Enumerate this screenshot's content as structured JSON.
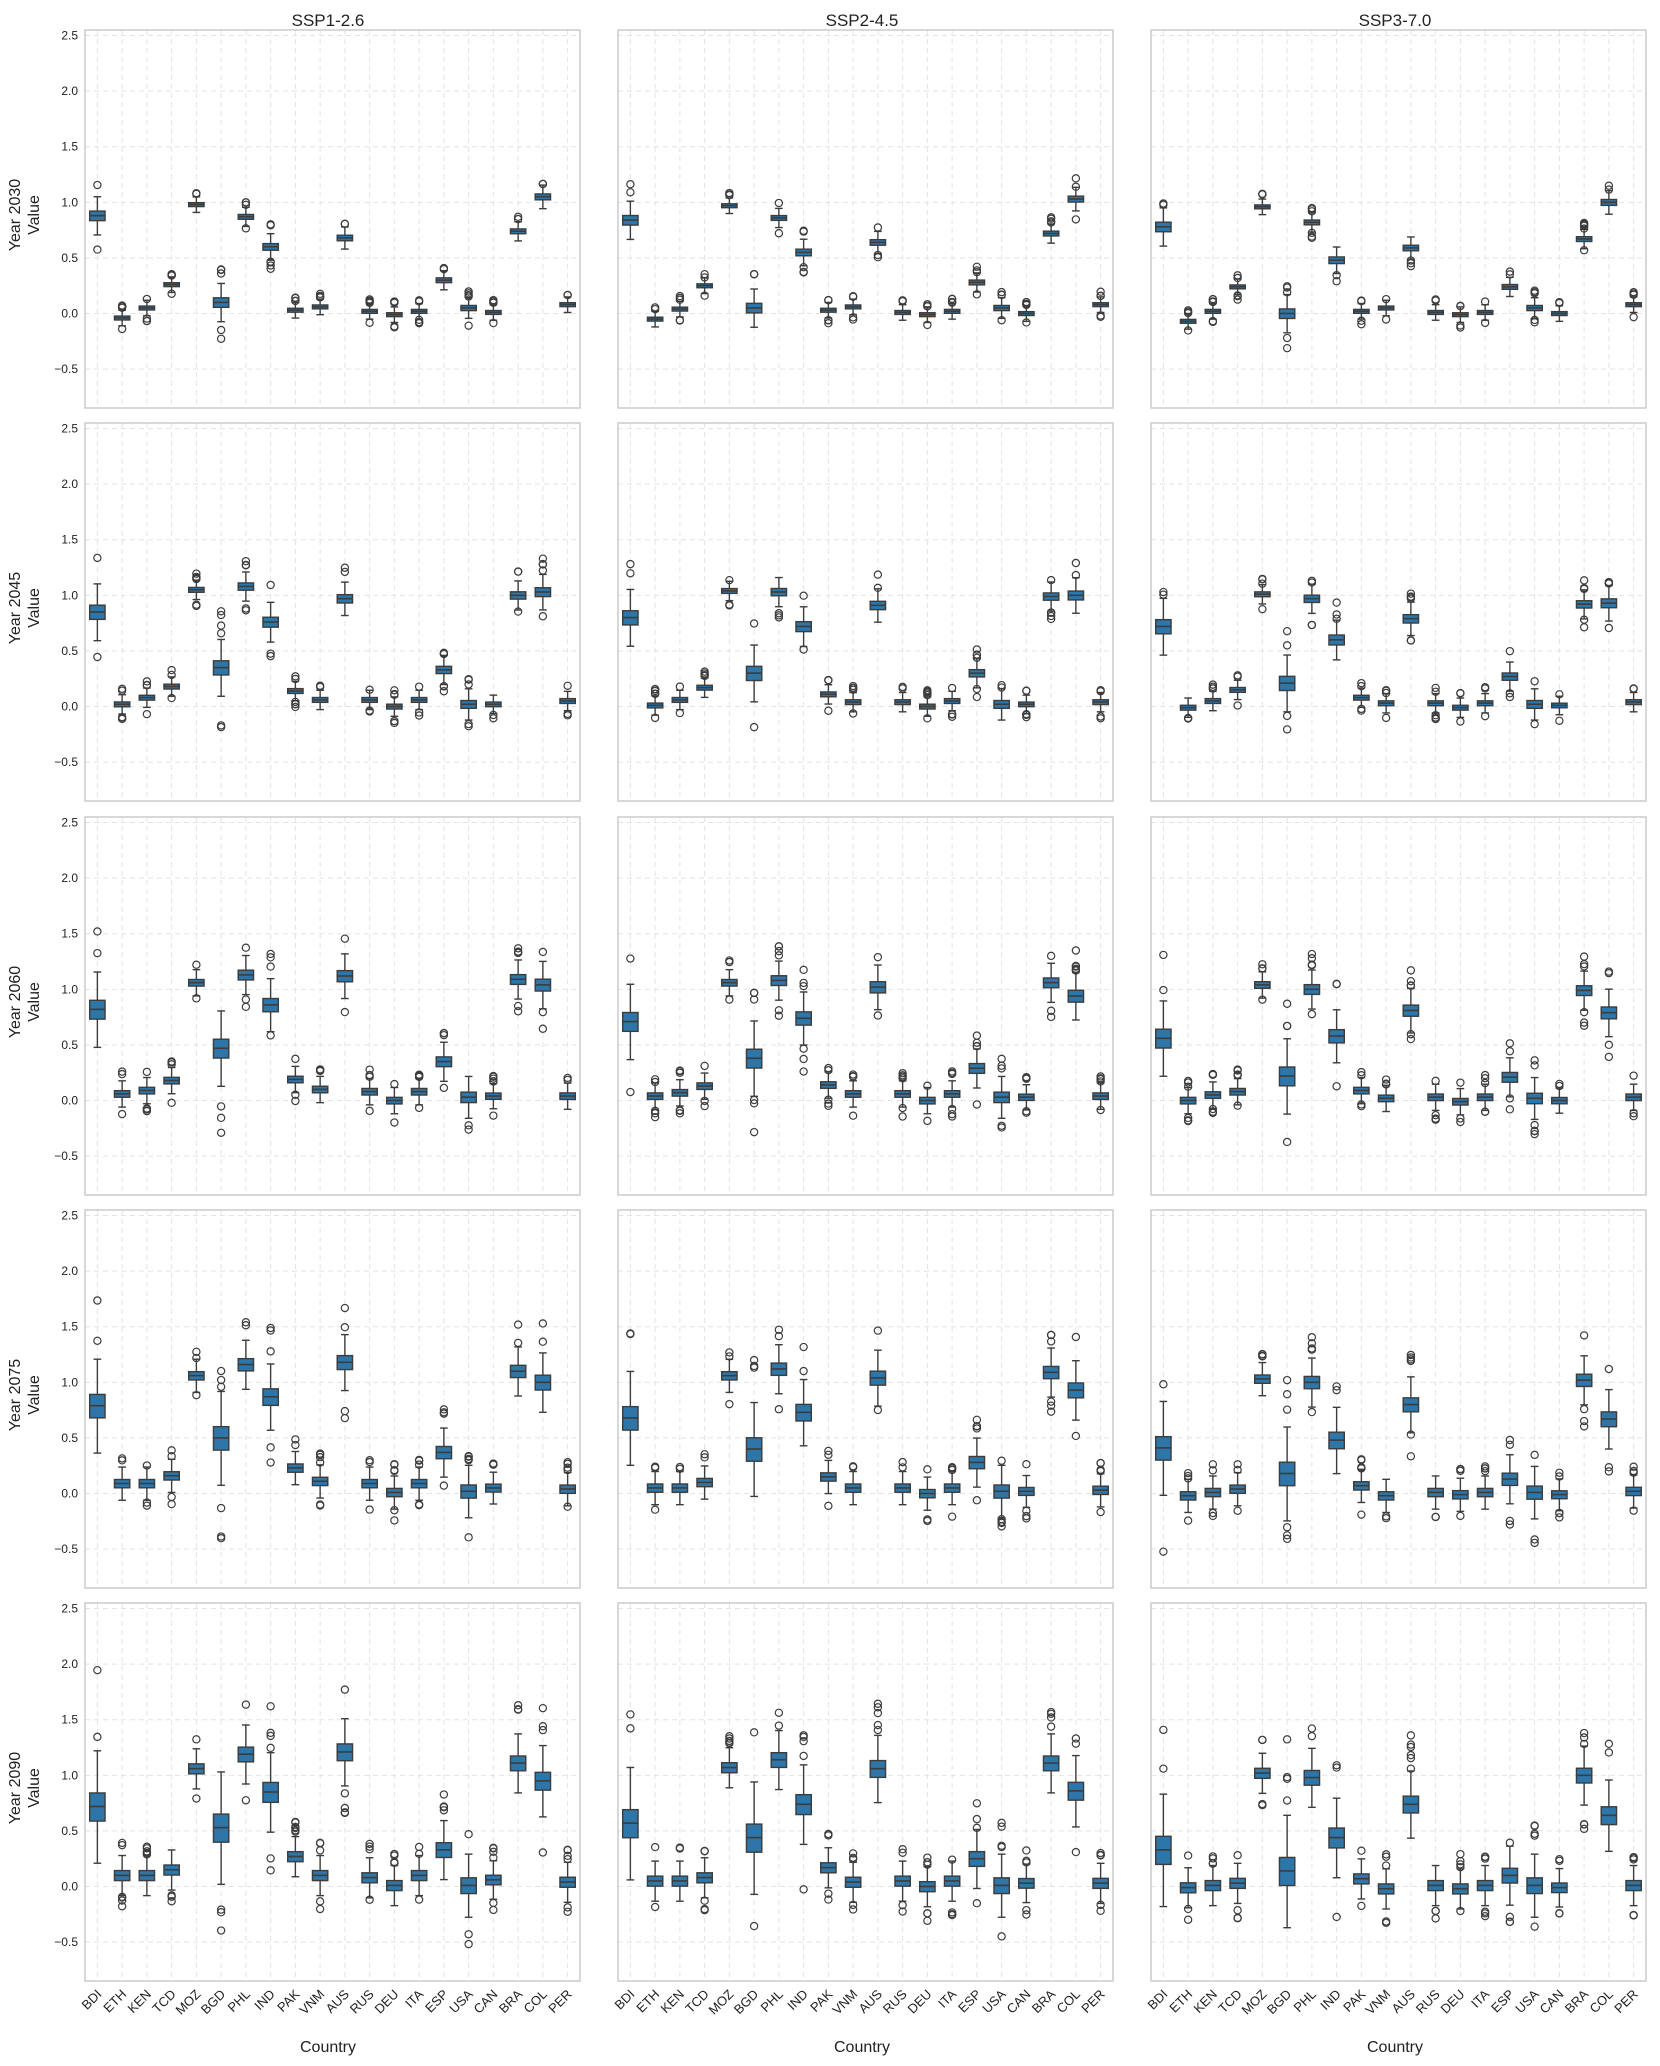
{
  "figure": {
    "column_titles": [
      "SSP1-2.6",
      "SSP2-4.5",
      "SSP3-7.0"
    ],
    "row_labels": [
      "Year 2030",
      "Year 2045",
      "Year 2060",
      "Year 2075",
      "Year 2090"
    ],
    "y_axis_label": "Value",
    "x_axis_label": "Country"
  },
  "colors": {
    "box_fill": "#2e75a8",
    "box_edge": "#3c3c3c",
    "grid": "#e4e4e4",
    "frame": "#c8c8c8"
  },
  "chart_data": {
    "type": "box",
    "grid": true,
    "ylim": [
      -0.85,
      2.55
    ],
    "yticks": [
      -0.5,
      0.0,
      0.5,
      1.0,
      1.5,
      2.0,
      2.5
    ],
    "ytick_labels": [
      "−0.5",
      "0.0",
      "0.5",
      "1.0",
      "1.5",
      "2.0",
      "2.5"
    ],
    "categories": [
      "BDI",
      "ETH",
      "KEN",
      "TCD",
      "MOZ",
      "BGD",
      "PHL",
      "IND",
      "PAK",
      "VNM",
      "AUS",
      "RUS",
      "DEU",
      "ITA",
      "ESP",
      "USA",
      "CAN",
      "BRA",
      "COL",
      "PER"
    ],
    "panels": [
      {
        "row": "Year 2030",
        "scenario": "SSP1-2.6",
        "medians": [
          0.88,
          -0.04,
          0.05,
          0.26,
          0.98,
          0.1,
          0.87,
          0.6,
          0.03,
          0.06,
          0.68,
          0.02,
          -0.01,
          0.02,
          0.3,
          0.05,
          0.01,
          0.74,
          1.05,
          0.08
        ]
      },
      {
        "row": "Year 2030",
        "scenario": "SSP2-4.5",
        "medians": [
          0.84,
          -0.05,
          0.04,
          0.25,
          0.97,
          0.05,
          0.86,
          0.55,
          0.03,
          0.06,
          0.64,
          0.01,
          -0.01,
          0.02,
          0.28,
          0.05,
          0.0,
          0.72,
          1.03,
          0.08
        ]
      },
      {
        "row": "Year 2030",
        "scenario": "SSP3-7.0",
        "medians": [
          0.78,
          -0.07,
          0.02,
          0.24,
          0.96,
          0.0,
          0.82,
          0.48,
          0.02,
          0.05,
          0.59,
          0.01,
          -0.01,
          0.01,
          0.24,
          0.05,
          0.0,
          0.67,
          1.0,
          0.08
        ]
      },
      {
        "row": "Year 2045",
        "scenario": "SSP1-2.6",
        "medians": [
          0.85,
          0.02,
          0.08,
          0.18,
          1.05,
          0.35,
          1.08,
          0.76,
          0.14,
          0.06,
          0.97,
          0.06,
          0.0,
          0.06,
          0.33,
          0.02,
          0.02,
          1.0,
          1.03,
          0.05
        ]
      },
      {
        "row": "Year 2045",
        "scenario": "SSP2-4.5",
        "medians": [
          0.8,
          0.01,
          0.06,
          0.17,
          1.04,
          0.3,
          1.03,
          0.72,
          0.11,
          0.04,
          0.91,
          0.04,
          0.0,
          0.05,
          0.3,
          0.02,
          0.02,
          0.99,
          1.0,
          0.04
        ]
      },
      {
        "row": "Year 2045",
        "scenario": "SSP3-7.0",
        "medians": [
          0.72,
          -0.01,
          0.05,
          0.15,
          1.01,
          0.21,
          0.97,
          0.6,
          0.08,
          0.03,
          0.79,
          0.03,
          -0.01,
          0.03,
          0.27,
          0.02,
          0.01,
          0.92,
          0.93,
          0.04
        ]
      },
      {
        "row": "Year 2060",
        "scenario": "SSP1-2.6",
        "medians": [
          0.82,
          0.06,
          0.09,
          0.18,
          1.06,
          0.47,
          1.13,
          0.86,
          0.19,
          0.1,
          1.12,
          0.08,
          0.0,
          0.08,
          0.35,
          0.03,
          0.04,
          1.09,
          1.04,
          0.04
        ]
      },
      {
        "row": "Year 2060",
        "scenario": "SSP2-4.5",
        "medians": [
          0.71,
          0.04,
          0.07,
          0.13,
          1.06,
          0.38,
          1.08,
          0.74,
          0.14,
          0.06,
          1.02,
          0.06,
          0.0,
          0.06,
          0.29,
          0.03,
          0.03,
          1.06,
          0.94,
          0.04
        ]
      },
      {
        "row": "Year 2060",
        "scenario": "SSP3-7.0",
        "medians": [
          0.56,
          0.0,
          0.05,
          0.08,
          1.04,
          0.22,
          1.0,
          0.58,
          0.09,
          0.02,
          0.81,
          0.03,
          -0.01,
          0.03,
          0.21,
          0.02,
          0.0,
          0.99,
          0.79,
          0.03
        ]
      },
      {
        "row": "Year 2075",
        "scenario": "SSP1-2.6",
        "medians": [
          0.79,
          0.09,
          0.09,
          0.16,
          1.06,
          0.5,
          1.16,
          0.87,
          0.23,
          0.11,
          1.18,
          0.09,
          0.01,
          0.09,
          0.37,
          0.02,
          0.05,
          1.1,
          1.0,
          0.04
        ]
      },
      {
        "row": "Year 2075",
        "scenario": "SSP2-4.5",
        "medians": [
          0.68,
          0.05,
          0.05,
          0.1,
          1.06,
          0.4,
          1.12,
          0.73,
          0.15,
          0.05,
          1.04,
          0.05,
          0.0,
          0.05,
          0.28,
          0.02,
          0.02,
          1.09,
          0.93,
          0.03
        ]
      },
      {
        "row": "Year 2075",
        "scenario": "SSP3-7.0",
        "medians": [
          0.41,
          -0.02,
          0.01,
          0.04,
          1.03,
          0.18,
          1.0,
          0.48,
          0.07,
          -0.02,
          0.8,
          0.01,
          -0.01,
          0.01,
          0.13,
          0.01,
          -0.01,
          1.02,
          0.67,
          0.02
        ]
      },
      {
        "row": "Year 2090",
        "scenario": "SSP1-2.6",
        "medians": [
          0.72,
          0.1,
          0.1,
          0.15,
          1.06,
          0.53,
          1.19,
          0.85,
          0.27,
          0.1,
          1.21,
          0.08,
          0.01,
          0.1,
          0.33,
          0.01,
          0.06,
          1.11,
          0.95,
          0.04
        ]
      },
      {
        "row": "Year 2090",
        "scenario": "SSP2-4.5",
        "medians": [
          0.57,
          0.05,
          0.05,
          0.08,
          1.07,
          0.44,
          1.14,
          0.74,
          0.17,
          0.04,
          1.06,
          0.05,
          0.0,
          0.05,
          0.25,
          0.01,
          0.03,
          1.11,
          0.86,
          0.03
        ]
      },
      {
        "row": "Year 2090",
        "scenario": "SSP3-7.0",
        "medians": [
          0.33,
          -0.01,
          0.01,
          0.03,
          1.02,
          0.14,
          0.98,
          0.44,
          0.07,
          -0.02,
          0.74,
          0.01,
          -0.02,
          0.01,
          0.1,
          0.01,
          -0.01,
          1.0,
          0.64,
          0.01
        ]
      }
    ]
  }
}
